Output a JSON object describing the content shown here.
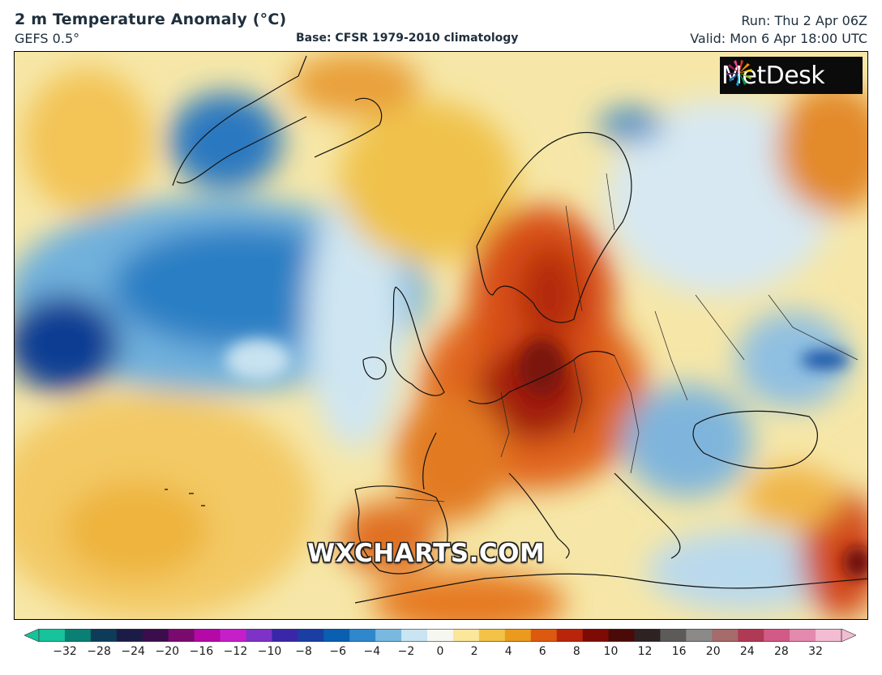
{
  "header": {
    "title": "2 m Temperature Anomaly (°C)",
    "model": "GEFS 0.5°",
    "base": "Base: CFSR 1979-2010 climatology",
    "run": "Run: Thu 2 Apr 06Z",
    "valid": "Valid: Mon 6 Apr 18:00 UTC"
  },
  "logo": {
    "text": "MetDesk",
    "icon": "metdesk-pinwheel-icon"
  },
  "watermark": "WXCHARTS.COM",
  "colorbar": {
    "unit": "°C",
    "ticks": [
      "−32",
      "−28",
      "−24",
      "−20",
      "−16",
      "−12",
      "−10",
      "−8",
      "−6",
      "−4",
      "−2",
      "0",
      "2",
      "4",
      "6",
      "8",
      "10",
      "12",
      "16",
      "20",
      "24",
      "28",
      "32"
    ],
    "colors": [
      "#17c39a",
      "#0a7f74",
      "#0e3c58",
      "#1b1c46",
      "#3b0d4a",
      "#7b0a6e",
      "#b408a7",
      "#c51fc9",
      "#7e32c6",
      "#3a27a8",
      "#1b3ea3",
      "#0a5fb0",
      "#2f88cc",
      "#7ab8e0",
      "#c9e4f2",
      "#f7f7f2",
      "#fbe69a",
      "#f2c348",
      "#ec9a1e",
      "#dc5a0f",
      "#b8250a",
      "#7e0a06",
      "#4a0b08",
      "#2e2322",
      "#5d5b5a",
      "#8c8a89",
      "#a66b6b",
      "#b03a55",
      "#d35a86",
      "#e48aaf",
      "#f3bcd2"
    ],
    "extend": "both"
  }
}
